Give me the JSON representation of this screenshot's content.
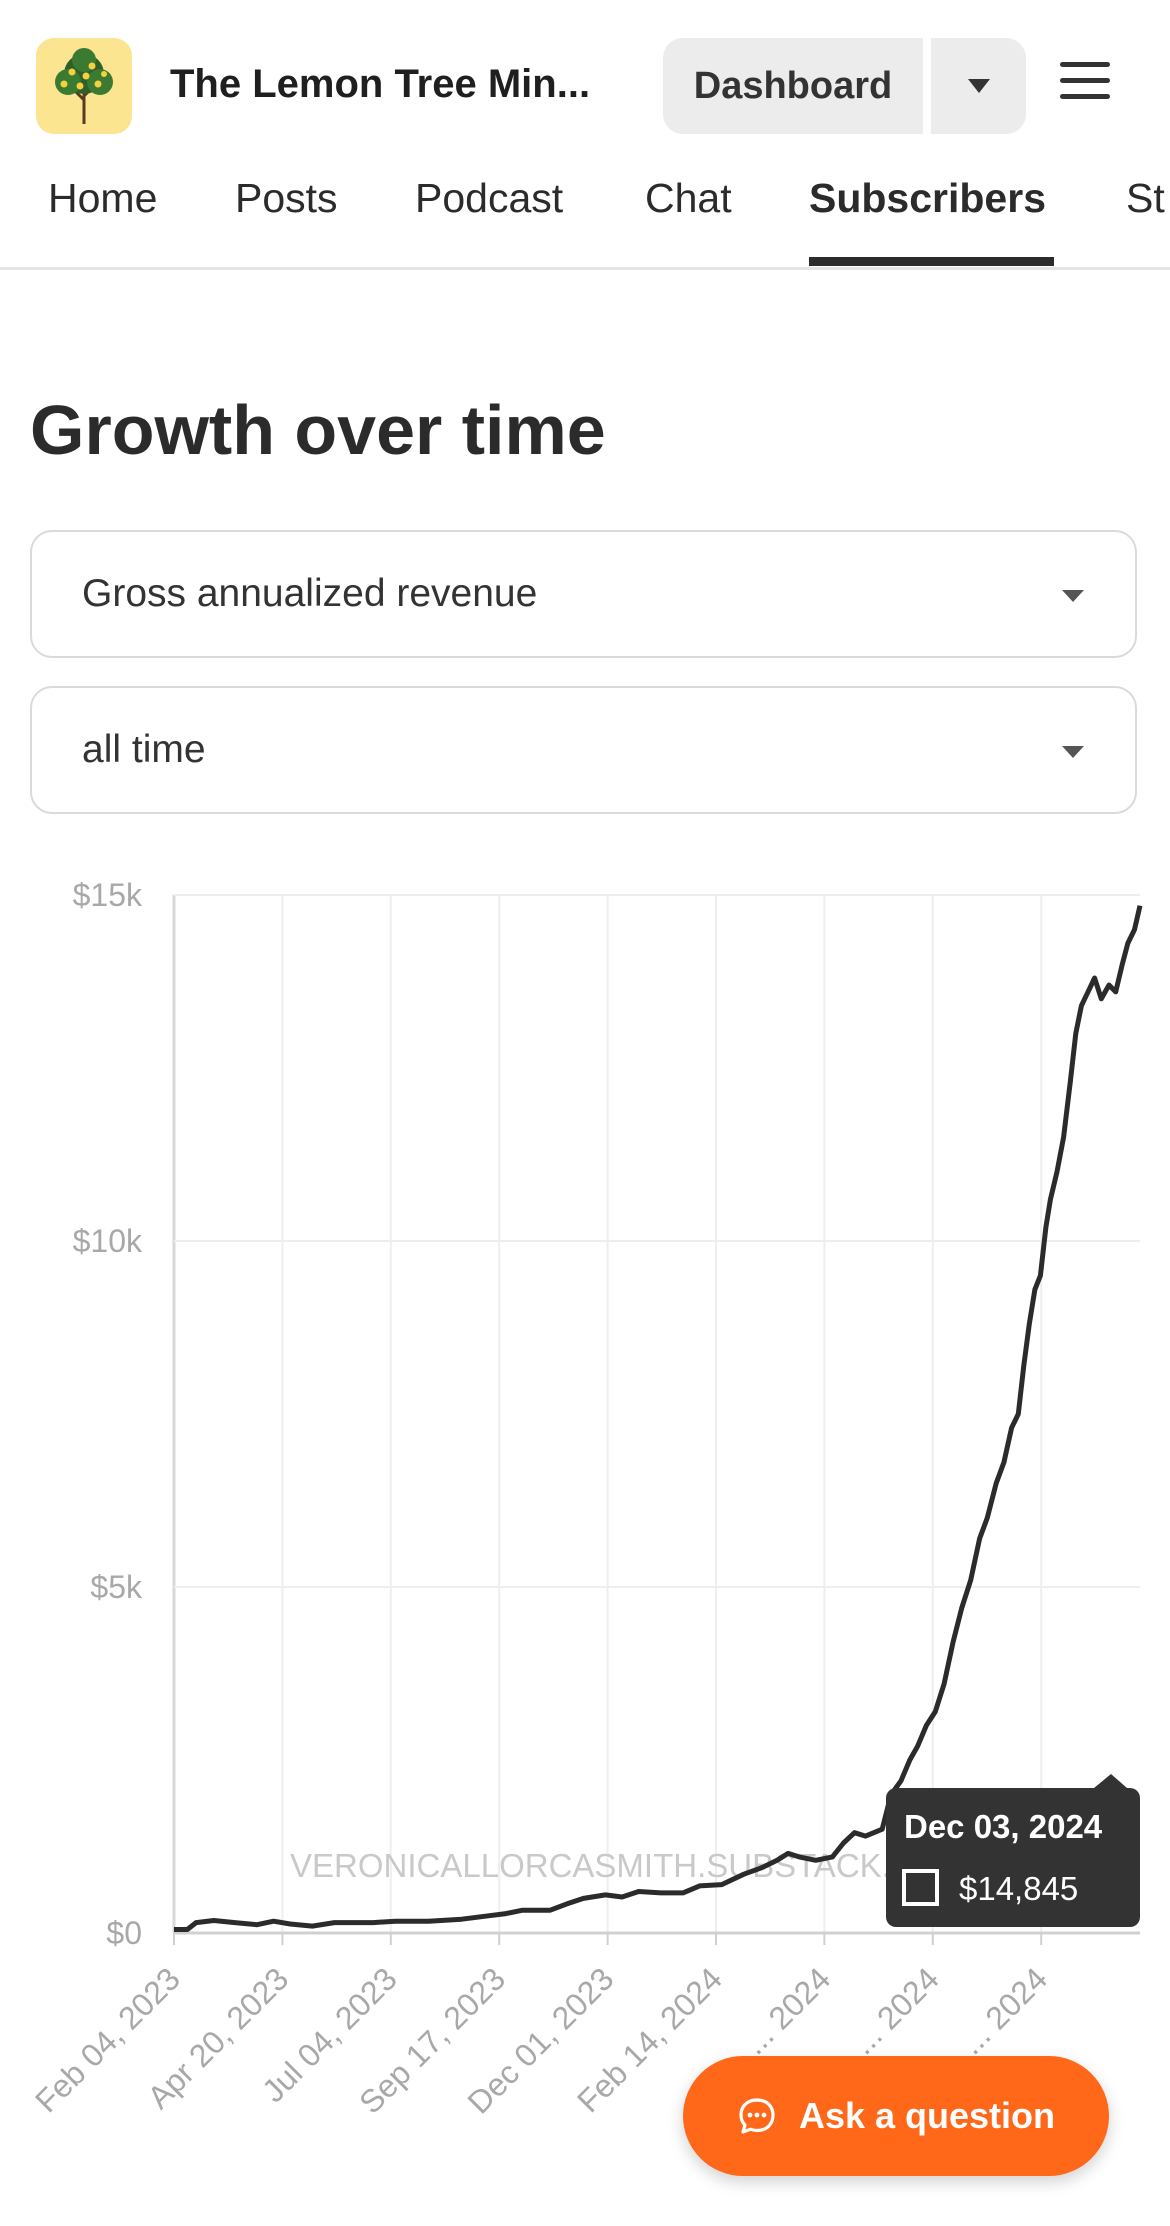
{
  "header": {
    "publication_title": "The Lemon Tree Min...",
    "dashboard_label": "Dashboard"
  },
  "tabs": [
    {
      "label": "Home",
      "active": false
    },
    {
      "label": "Posts",
      "active": false
    },
    {
      "label": "Podcast",
      "active": false
    },
    {
      "label": "Chat",
      "active": false
    },
    {
      "label": "Subscribers",
      "active": true
    },
    {
      "label": "St",
      "active": false
    }
  ],
  "page": {
    "heading": "Growth over time",
    "metric_select": "Gross annualized revenue",
    "range_select": "all time"
  },
  "chart_data": {
    "type": "line",
    "title": "",
    "ylim": [
      0,
      15000
    ],
    "y_ticks": [
      {
        "value": 0,
        "label": "$0"
      },
      {
        "value": 5000,
        "label": "$5k"
      },
      {
        "value": 10000,
        "label": "$10k"
      },
      {
        "value": 15000,
        "label": "$15k"
      }
    ],
    "x_ticks": [
      "Feb 04, 2023",
      "Apr 20, 2023",
      "Jul 04, 2023",
      "Sep 17, 2023",
      "Dec 01, 2023",
      "Feb 14, 2024",
      "... 2024",
      "... 2024",
      "... 2024"
    ],
    "watermark": "VERONICALLORCASMITH.SUBSTACK.COM",
    "tooltip": {
      "date": "Dec 03, 2024",
      "value": "$14,845"
    },
    "series": [
      {
        "values": [
          [
            0,
            50
          ],
          [
            12,
            50
          ],
          [
            20,
            150
          ],
          [
            36,
            180
          ],
          [
            55,
            150
          ],
          [
            75,
            120
          ],
          [
            90,
            170
          ],
          [
            105,
            130
          ],
          [
            125,
            100
          ],
          [
            145,
            150
          ],
          [
            165,
            150
          ],
          [
            180,
            150
          ],
          [
            200,
            170
          ],
          [
            230,
            170
          ],
          [
            260,
            200
          ],
          [
            285,
            250
          ],
          [
            300,
            280
          ],
          [
            315,
            330
          ],
          [
            340,
            330
          ],
          [
            355,
            420
          ],
          [
            370,
            500
          ],
          [
            390,
            550
          ],
          [
            405,
            520
          ],
          [
            420,
            600
          ],
          [
            440,
            580
          ],
          [
            460,
            580
          ],
          [
            475,
            680
          ],
          [
            495,
            700
          ],
          [
            515,
            850
          ],
          [
            532,
            950
          ],
          [
            545,
            1050
          ],
          [
            555,
            1150
          ],
          [
            565,
            1100
          ],
          [
            580,
            1050
          ],
          [
            595,
            1100
          ],
          [
            605,
            1300
          ],
          [
            615,
            1450
          ],
          [
            625,
            1400
          ],
          [
            640,
            1500
          ],
          [
            648,
            2000
          ],
          [
            657,
            2200
          ],
          [
            665,
            2500
          ],
          [
            672,
            2700
          ],
          [
            680,
            3000
          ],
          [
            688,
            3200
          ],
          [
            696,
            3600
          ],
          [
            704,
            4200
          ],
          [
            712,
            4700
          ],
          [
            720,
            5100
          ],
          [
            728,
            5700
          ],
          [
            735,
            6000
          ],
          [
            743,
            6500
          ],
          [
            750,
            6800
          ],
          [
            757,
            7300
          ],
          [
            763,
            7500
          ],
          [
            768,
            8200
          ],
          [
            773,
            8800
          ],
          [
            778,
            9300
          ],
          [
            783,
            9500
          ],
          [
            788,
            10200
          ],
          [
            792,
            10600
          ],
          [
            798,
            11000
          ],
          [
            804,
            11500
          ],
          [
            810,
            12300
          ],
          [
            815,
            13000
          ],
          [
            820,
            13400
          ],
          [
            826,
            13600
          ],
          [
            832,
            13800
          ],
          [
            838,
            13500
          ],
          [
            845,
            13700
          ],
          [
            851,
            13600
          ],
          [
            857,
            14000
          ],
          [
            862,
            14300
          ],
          [
            868,
            14500
          ],
          [
            873,
            14845
          ]
        ]
      }
    ]
  },
  "ask_button_label": "Ask a question",
  "colors": {
    "accent": "#ff6719",
    "line": "#2b2b2b",
    "logo_bg": "#fbe590"
  }
}
